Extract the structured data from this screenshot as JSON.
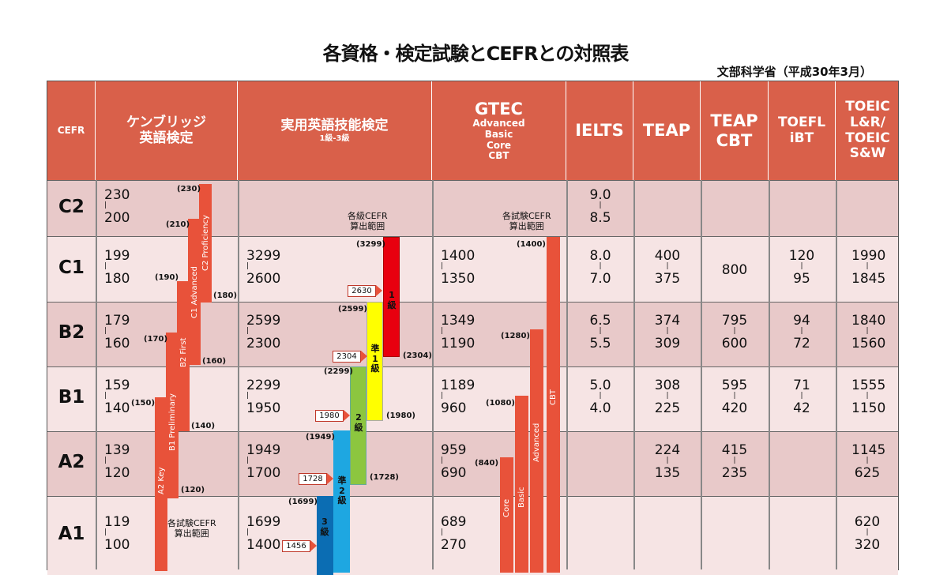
{
  "title": "各資格・検定試験とCEFRとの対照表",
  "source": "文部科学省（平成30年3月）",
  "headers": {
    "cefr": "CEFR",
    "cambridge": [
      "ケンブリッジ",
      "英語検定"
    ],
    "eiken": "実用英語技能検定",
    "eiken_sub": "1級-3級",
    "gtec": "GTEC",
    "gtec_sub": [
      "Advanced",
      "Basic",
      "Core",
      "CBT"
    ],
    "ielts": "IELTS",
    "teap": "TEAP",
    "teap_cbt": [
      "TEAP",
      "CBT"
    ],
    "toefl": [
      "TOEFL",
      "iBT"
    ],
    "toeic": [
      "TOEIC",
      "L&R/",
      "TOEIC",
      "S&W"
    ]
  },
  "rows": [
    {
      "level": "C2",
      "cambridge": [
        "230",
        "200"
      ],
      "eiken": null,
      "gtec": null,
      "ielts": [
        "9.0",
        "8.5"
      ],
      "teap": null,
      "teap_cbt": null,
      "toefl": null,
      "toeic": null
    },
    {
      "level": "C1",
      "cambridge": [
        "199",
        "180"
      ],
      "eiken": [
        "3299",
        "2600"
      ],
      "gtec": [
        "1400",
        "1350"
      ],
      "ielts": [
        "8.0",
        "7.0"
      ],
      "teap": [
        "400",
        "375"
      ],
      "teap_cbt": "800",
      "toefl": [
        "120",
        "95"
      ],
      "toeic": [
        "1990",
        "1845"
      ]
    },
    {
      "level": "B2",
      "cambridge": [
        "179",
        "160"
      ],
      "eiken": [
        "2599",
        "2300"
      ],
      "gtec": [
        "1349",
        "1190"
      ],
      "ielts": [
        "6.5",
        "5.5"
      ],
      "teap": [
        "374",
        "309"
      ],
      "teap_cbt": [
        "795",
        "600"
      ],
      "toefl": [
        "94",
        "72"
      ],
      "toeic": [
        "1840",
        "1560"
      ]
    },
    {
      "level": "B1",
      "cambridge": [
        "159",
        "140"
      ],
      "eiken": [
        "2299",
        "1950"
      ],
      "gtec": [
        "1189",
        "960"
      ],
      "ielts": [
        "5.0",
        "4.0"
      ],
      "teap": [
        "308",
        "225"
      ],
      "teap_cbt": [
        "595",
        "420"
      ],
      "toefl": [
        "71",
        "42"
      ],
      "toeic": [
        "1555",
        "1150"
      ]
    },
    {
      "level": "A2",
      "cambridge": [
        "139",
        "120"
      ],
      "eiken": [
        "1949",
        "1700"
      ],
      "gtec": [
        "959",
        "690"
      ],
      "ielts": null,
      "teap": [
        "224",
        "135"
      ],
      "teap_cbt": [
        "415",
        "235"
      ],
      "toefl": null,
      "toeic": [
        "1145",
        "625"
      ]
    },
    {
      "level": "A1",
      "cambridge": [
        "119",
        "100"
      ],
      "eiken": [
        "1699",
        "1400"
      ],
      "gtec": [
        "689",
        "270"
      ],
      "ielts": null,
      "teap": null,
      "teap_cbt": null,
      "toefl": null,
      "toeic": [
        "620",
        "320"
      ]
    }
  ],
  "cambridge_bars": {
    "labels": [
      "C2 Proficiency",
      "C1 Advanced",
      "B2 First",
      "B1 Preliminary",
      "A2 Key"
    ],
    "annotations": [
      "(230)",
      "(210)",
      "(180)",
      "(190)",
      "(160)",
      "(170)",
      "(140)",
      "(150)",
      "(120)"
    ],
    "scope": [
      "各試験CEFR",
      "算出範囲"
    ]
  },
  "eiken_bars": {
    "scope": [
      "各級CEFR",
      "算出範囲"
    ],
    "grades": [
      {
        "label": "1\n級",
        "color": "#e8000f"
      },
      {
        "label": "準\n1\n級",
        "color": "#ffff00"
      },
      {
        "label": "2\n級",
        "color": "#8cc63f"
      },
      {
        "label": "準\n2\n級",
        "color": "#1ea7e1"
      },
      {
        "label": "3\n級",
        "color": "#0b6db3"
      }
    ],
    "annotations": [
      "(3299)",
      "(2599)",
      "(2304)",
      "(2299)",
      "(1980)",
      "(1949)",
      "(1728)",
      "(1699)"
    ],
    "tags": [
      "2630",
      "2304",
      "1980",
      "1728",
      "1456"
    ]
  },
  "gtec_bars": {
    "scope": [
      "各試験CEFR",
      "算出範囲"
    ],
    "labels": [
      "CBT",
      "Advanced",
      "Basic",
      "Core"
    ],
    "annotations": [
      "(1400)",
      "(1280)",
      "(1080)",
      "(840)"
    ]
  }
}
